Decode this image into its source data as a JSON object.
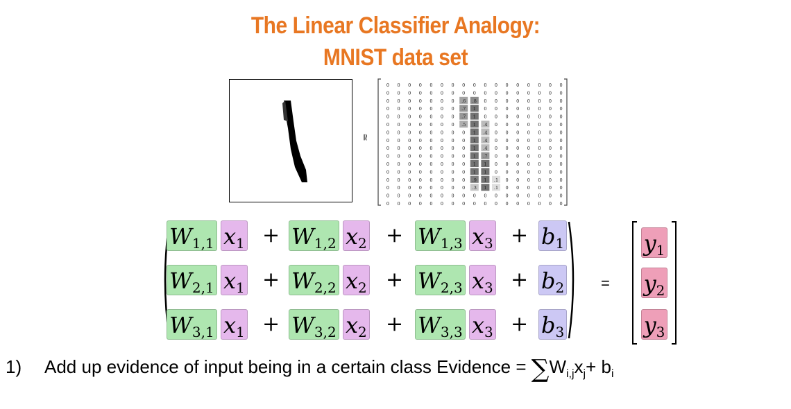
{
  "title": {
    "line1": "The Linear Classifier Analogy:",
    "line2": "MNIST data set"
  },
  "approx_symbol": "≃",
  "pixel_matrix": {
    "rows": [
      [
        "0",
        "0",
        "0",
        "0",
        "0",
        "0",
        "0",
        "0",
        "0",
        "0",
        "0",
        "0",
        "0",
        "0",
        "0",
        "0",
        "0"
      ],
      [
        "0",
        "0",
        "0",
        "0",
        "0",
        "0",
        "0",
        "0",
        "0",
        "0",
        "0",
        "0",
        "0",
        "0",
        "0",
        "0",
        "0"
      ],
      [
        "0",
        "0",
        "0",
        "0",
        "0",
        "0",
        "0",
        ".6",
        ".8",
        "0",
        "0",
        "0",
        "0",
        "0",
        "0",
        "0",
        "0"
      ],
      [
        "0",
        "0",
        "0",
        "0",
        "0",
        "0",
        "0",
        ".7",
        "1",
        "0",
        "0",
        "0",
        "0",
        "0",
        "0",
        "0",
        "0"
      ],
      [
        "0",
        "0",
        "0",
        "0",
        "0",
        "0",
        "0",
        ".7",
        "1",
        "0",
        "0",
        "0",
        "0",
        "0",
        "0",
        "0",
        "0"
      ],
      [
        "0",
        "0",
        "0",
        "0",
        "0",
        "0",
        "0",
        ".5",
        "1",
        ".4",
        "0",
        "0",
        "0",
        "0",
        "0",
        "0",
        "0"
      ],
      [
        "0",
        "0",
        "0",
        "0",
        "0",
        "0",
        "0",
        "0",
        "1",
        ".4",
        "0",
        "0",
        "0",
        "0",
        "0",
        "0",
        "0"
      ],
      [
        "0",
        "0",
        "0",
        "0",
        "0",
        "0",
        "0",
        "0",
        "1",
        ".4",
        "0",
        "0",
        "0",
        "0",
        "0",
        "0",
        "0"
      ],
      [
        "0",
        "0",
        "0",
        "0",
        "0",
        "0",
        "0",
        "0",
        "1",
        ".4",
        "0",
        "0",
        "0",
        "0",
        "0",
        "0",
        "0"
      ],
      [
        "0",
        "0",
        "0",
        "0",
        "0",
        "0",
        "0",
        "0",
        "1",
        ".7",
        "0",
        "0",
        "0",
        "0",
        "0",
        "0",
        "0"
      ],
      [
        "0",
        "0",
        "0",
        "0",
        "0",
        "0",
        "0",
        "0",
        "1",
        "1",
        "0",
        "0",
        "0",
        "0",
        "0",
        "0",
        "0"
      ],
      [
        "0",
        "0",
        "0",
        "0",
        "0",
        "0",
        "0",
        "0",
        "1",
        "1",
        "0",
        "0",
        "0",
        "0",
        "0",
        "0",
        "0"
      ],
      [
        "0",
        "0",
        "0",
        "0",
        "0",
        "0",
        "0",
        "0",
        ".9",
        "1",
        ".1",
        "0",
        "0",
        "0",
        "0",
        "0",
        "0"
      ],
      [
        "0",
        "0",
        "0",
        "0",
        "0",
        "0",
        "0",
        "0",
        ".3",
        "1",
        ".1",
        "0",
        "0",
        "0",
        "0",
        "0",
        "0"
      ],
      [
        "0",
        "0",
        "0",
        "0",
        "0",
        "0",
        "0",
        "0",
        "0",
        "0",
        "0",
        "0",
        "0",
        "0",
        "0",
        "0",
        "0"
      ],
      [
        "0",
        "0",
        "0",
        "0",
        "0",
        "0",
        "0",
        "0",
        "0",
        "0",
        "0",
        "0",
        "0",
        "0",
        "0",
        "0",
        "0"
      ]
    ]
  },
  "equation": {
    "rows": [
      {
        "w": [
          "W",
          "1,1",
          "W",
          "1,2",
          "W",
          "1,3"
        ],
        "x": [
          "x",
          "1",
          "x",
          "2",
          "x",
          "3"
        ],
        "b": [
          "b",
          "1"
        ]
      },
      {
        "w": [
          "W",
          "2,1",
          "W",
          "2,2",
          "W",
          "2,3"
        ],
        "x": [
          "x",
          "1",
          "x",
          "2",
          "x",
          "3"
        ],
        "b": [
          "b",
          "2"
        ]
      },
      {
        "w": [
          "W",
          "3,1",
          "W",
          "3,2",
          "W",
          "3,3"
        ],
        "x": [
          "x",
          "1",
          "x",
          "2",
          "x",
          "3"
        ],
        "b": [
          "b",
          "3"
        ]
      }
    ],
    "plus": "+",
    "equals": "=",
    "y": [
      [
        "y",
        "1"
      ],
      [
        "y",
        "2"
      ],
      [
        "y",
        "3"
      ]
    ]
  },
  "footer": {
    "number": "1)",
    "text": "Add up evidence of input being in a certain class Evidence = ",
    "sigma": "∑",
    "w": "W",
    "w_sub": "i,j",
    "x": "x",
    "x_sub": "j",
    "plus_b": "+ b",
    "b_sub": "i"
  },
  "colors": {
    "title": "#e87722",
    "weight_highlight": "#aee6b0",
    "input_highlight": "#e5b8ec",
    "bias_highlight": "#ccc8f4",
    "output_highlight": "#ee9fb8"
  }
}
